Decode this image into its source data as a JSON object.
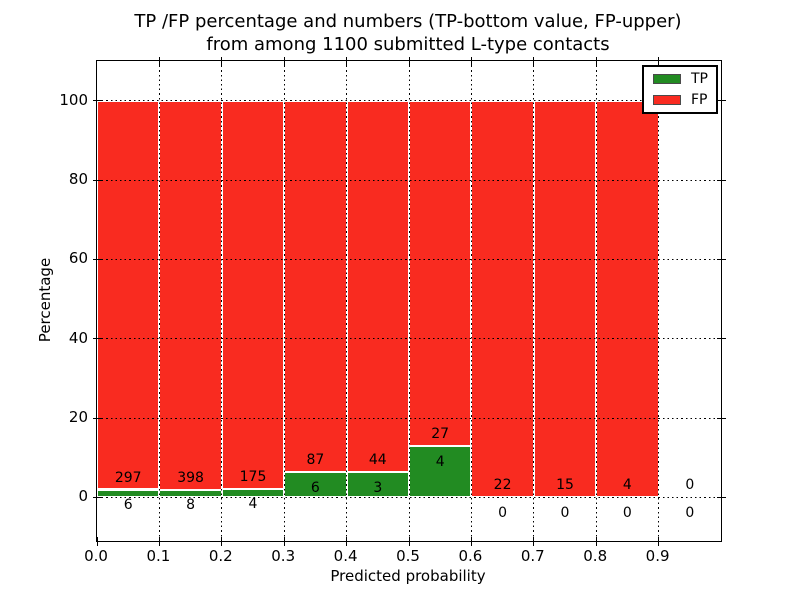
{
  "title": {
    "line1": "TP /FP percentage and numbers (TP-bottom value, FP-upper)",
    "line2": "from among 1100 submitted L-type contacts"
  },
  "axes": {
    "xlabel": "Predicted probability",
    "ylabel": "Percentage",
    "x_ticks": [
      {
        "v": 0.0,
        "label": "0.0"
      },
      {
        "v": 0.1,
        "label": "0.1"
      },
      {
        "v": 0.2,
        "label": "0.2"
      },
      {
        "v": 0.3,
        "label": "0.3"
      },
      {
        "v": 0.4,
        "label": "0.4"
      },
      {
        "v": 0.5,
        "label": "0.5"
      },
      {
        "v": 0.6,
        "label": "0.6"
      },
      {
        "v": 0.7,
        "label": "0.7"
      },
      {
        "v": 0.8,
        "label": "0.8"
      },
      {
        "v": 0.9,
        "label": "0.9"
      }
    ],
    "y_ticks": [
      {
        "v": 0,
        "label": "0"
      },
      {
        "v": 20,
        "label": "20"
      },
      {
        "v": 40,
        "label": "40"
      },
      {
        "v": 60,
        "label": "60"
      },
      {
        "v": 80,
        "label": "80"
      },
      {
        "v": 100,
        "label": "100"
      }
    ]
  },
  "legend": {
    "items": [
      {
        "label": "TP",
        "color": "#228b22"
      },
      {
        "label": "FP",
        "color": "#f92b20"
      }
    ]
  },
  "chart_data": {
    "type": "bar",
    "stacked": true,
    "title": "TP /FP percentage and numbers (TP-bottom value, FP-upper) from among 1100 submitted L-type contacts",
    "xlabel": "Predicted probability",
    "ylabel": "Percentage",
    "xlim": [
      0.0,
      1.0
    ],
    "ylim": [
      -11,
      110
    ],
    "bin_width": 0.1,
    "grid": {
      "style": "dotted",
      "color": "#000000",
      "drawn_above_bars": true
    },
    "legend_position": "upper right",
    "total_contacts": 1100,
    "colors": {
      "tp": "#228b22",
      "fp": "#f92b20",
      "bar_edge": "#ffffff"
    },
    "series": [
      {
        "name": "TP",
        "color": "#228b22",
        "counts": [
          6,
          8,
          4,
          6,
          3,
          4,
          0,
          0,
          0,
          0
        ]
      },
      {
        "name": "FP",
        "color": "#f92b20",
        "counts": [
          297,
          398,
          175,
          87,
          44,
          27,
          22,
          15,
          4,
          0
        ]
      }
    ],
    "bins": [
      {
        "x0": 0.0,
        "tp": 6,
        "fp": 297,
        "tp_pct": 1.98,
        "fp_pct": 98.02
      },
      {
        "x0": 0.1,
        "tp": 8,
        "fp": 398,
        "tp_pct": 1.97,
        "fp_pct": 98.03
      },
      {
        "x0": 0.2,
        "tp": 4,
        "fp": 175,
        "tp_pct": 2.23,
        "fp_pct": 97.77
      },
      {
        "x0": 0.3,
        "tp": 6,
        "fp": 87,
        "tp_pct": 6.45,
        "fp_pct": 93.55
      },
      {
        "x0": 0.4,
        "tp": 3,
        "fp": 44,
        "tp_pct": 6.38,
        "fp_pct": 93.62
      },
      {
        "x0": 0.5,
        "tp": 4,
        "fp": 27,
        "tp_pct": 12.9,
        "fp_pct": 87.1
      },
      {
        "x0": 0.6,
        "tp": 0,
        "fp": 22,
        "tp_pct": 0,
        "fp_pct": 100
      },
      {
        "x0": 0.7,
        "tp": 0,
        "fp": 15,
        "tp_pct": 0,
        "fp_pct": 100
      },
      {
        "x0": 0.8,
        "tp": 0,
        "fp": 4,
        "tp_pct": 0,
        "fp_pct": 100
      },
      {
        "x0": 0.9,
        "tp": 0,
        "fp": 0,
        "tp_pct": null,
        "fp_pct": null
      }
    ],
    "bar_label_offsets": {
      "fp_label_y": 3.0,
      "tp_label_y": -4.0
    }
  }
}
